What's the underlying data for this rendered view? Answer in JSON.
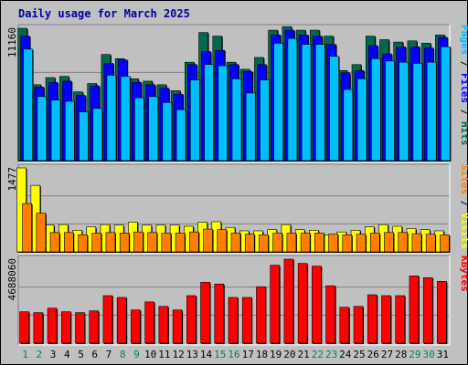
{
  "chart_data": {
    "type": "bar",
    "title": "Daily usage for March 2025",
    "categories": [
      "1",
      "2",
      "3",
      "4",
      "5",
      "6",
      "7",
      "8",
      "9",
      "10",
      "11",
      "12",
      "13",
      "14",
      "15",
      "16",
      "17",
      "18",
      "19",
      "20",
      "21",
      "22",
      "23",
      "24",
      "25",
      "26",
      "27",
      "28",
      "29",
      "30",
      "31"
    ],
    "weekend_days": [
      1,
      2,
      8,
      9,
      15,
      16,
      22,
      23,
      29,
      30
    ],
    "panels": [
      {
        "name": "hits-files-pages",
        "axis_label": "11160",
        "ylim": [
          0,
          11160
        ],
        "legend": [
          "Pages",
          "Files",
          "Hits"
        ],
        "series": [
          {
            "name": "Hits",
            "color": "#006a4e",
            "values": [
              11160,
              6400,
              7000,
              7100,
              5800,
              6500,
              8950,
              8600,
              6900,
              6700,
              6400,
              5900,
              8300,
              10800,
              10500,
              8300,
              7700,
              8700,
              11000,
              11300,
              11000,
              11000,
              10500,
              7600,
              8100,
              10500,
              10200,
              10000,
              10100,
              9900,
              10600
            ]
          },
          {
            "name": "Files",
            "color": "#0000ff",
            "values": [
              10500,
              6200,
              6600,
              6700,
              5500,
              6300,
              8200,
              8500,
              6600,
              6400,
              6100,
              5600,
              8100,
              9200,
              9300,
              8100,
              7500,
              8100,
              10600,
              11000,
              10600,
              10500,
              9800,
              7400,
              7600,
              9700,
              9000,
              9600,
              9600,
              9500,
              10400
            ]
          },
          {
            "name": "Pages",
            "color": "#00bfff",
            "values": [
              9400,
              5400,
              5100,
              5000,
              4100,
              4400,
              7200,
              7100,
              5300,
              5400,
              4900,
              4300,
              6800,
              8100,
              8000,
              6900,
              5700,
              6800,
              9900,
              10300,
              9800,
              9800,
              8800,
              6000,
              6900,
              8600,
              8400,
              8300,
              8200,
              8300,
              9600
            ]
          }
        ]
      },
      {
        "name": "visits-sites",
        "axis_label": "1477",
        "ylim": [
          0,
          1477
        ],
        "legend": [
          "Sites",
          "Visits"
        ],
        "series": [
          {
            "name": "Visits",
            "color": "#ffff00",
            "values": [
              1477,
              1170,
              470,
              480,
              380,
              440,
              480,
              470,
              520,
              470,
              470,
              470,
              450,
              520,
              530,
              430,
              370,
              370,
              390,
              480,
              390,
              380,
              300,
              350,
              380,
              440,
              480,
              450,
              410,
              390,
              370
            ]
          },
          {
            "name": "Sites",
            "color": "#ff8000",
            "values": [
              850,
              680,
              340,
              340,
              300,
              330,
              340,
              330,
              350,
              340,
              330,
              330,
              350,
              400,
              390,
              330,
              310,
              300,
              330,
              330,
              330,
              330,
              310,
              300,
              310,
              330,
              340,
              340,
              320,
              310,
              300
            ]
          }
        ]
      },
      {
        "name": "kbytes",
        "axis_label": "4688060",
        "ylim": [
          0,
          4688060
        ],
        "legend": [
          "KBytes"
        ],
        "series": [
          {
            "name": "KBytes",
            "color": "#ff0000",
            "values": [
              1750000,
              1700000,
              1950000,
              1750000,
              1700000,
              1800000,
              2650000,
              2550000,
              1850000,
              2300000,
              2050000,
              1850000,
              2650000,
              3400000,
              3300000,
              2550000,
              2550000,
              3150000,
              4350000,
              4688060,
              4450000,
              4300000,
              3200000,
              2000000,
              2050000,
              2700000,
              2650000,
              2650000,
              3750000,
              3650000,
              3450000
            ]
          }
        ]
      }
    ],
    "legend_colors": {
      "Pages": "#00bfff",
      "Files": "#0000ff",
      "Hits": "#006a4e",
      "Sites": "#ff8000",
      "Visits": "#ffff00",
      "KBytes": "#ff0000",
      "separator": "#000000"
    }
  }
}
